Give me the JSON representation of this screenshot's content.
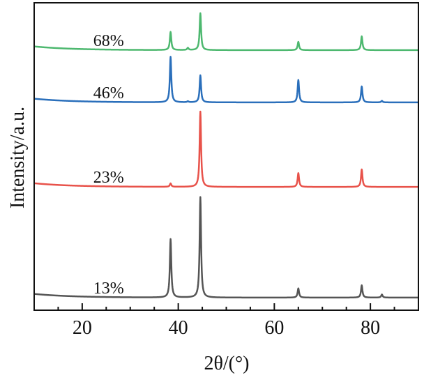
{
  "chart_data": {
    "type": "line",
    "title": "",
    "xlabel": "2θ/(°)",
    "ylabel": "Intensity/a.u.",
    "xlim": [
      10,
      90
    ],
    "ylim": [
      0,
      100
    ],
    "xticks": [
      20,
      40,
      60,
      80
    ],
    "xtick_labels": [
      "20",
      "40",
      "60",
      "80"
    ],
    "yticks_shown": false,
    "grid": false,
    "legend": "inline labels left of peaks",
    "series": [
      {
        "name": "13%",
        "color": "#555555",
        "offset": 4.1,
        "background": 1.2,
        "peaks": [
          {
            "x": 38.4,
            "h": 19
          },
          {
            "x": 44.6,
            "h": 32.7
          },
          {
            "x": 65.0,
            "h": 3
          },
          {
            "x": 78.2,
            "h": 4
          },
          {
            "x": 82.4,
            "h": 1
          }
        ]
      },
      {
        "name": "23%",
        "color": "#e8524a",
        "offset": 40.1,
        "background": 1.2,
        "peaks": [
          {
            "x": 38.4,
            "h": 1.1
          },
          {
            "x": 44.6,
            "h": 24.5
          },
          {
            "x": 65.0,
            "h": 4.5
          },
          {
            "x": 78.2,
            "h": 5.7
          }
        ]
      },
      {
        "name": "46%",
        "color": "#2a6fbb",
        "offset": 67.6,
        "background": 1.2,
        "peaks": [
          {
            "x": 38.4,
            "h": 14.8
          },
          {
            "x": 42.0,
            "h": 0.3
          },
          {
            "x": 44.6,
            "h": 8.8
          },
          {
            "x": 65.0,
            "h": 7.3
          },
          {
            "x": 78.2,
            "h": 5.2
          },
          {
            "x": 82.4,
            "h": 0.5
          }
        ]
      },
      {
        "name": "68%",
        "color": "#4db86f",
        "offset": 84.6,
        "background": 1.2,
        "peaks": [
          {
            "x": 38.4,
            "h": 5.9
          },
          {
            "x": 42.0,
            "h": 0.7
          },
          {
            "x": 44.6,
            "h": 12
          },
          {
            "x": 65.0,
            "h": 2.7
          },
          {
            "x": 78.2,
            "h": 4.5
          }
        ]
      }
    ]
  }
}
